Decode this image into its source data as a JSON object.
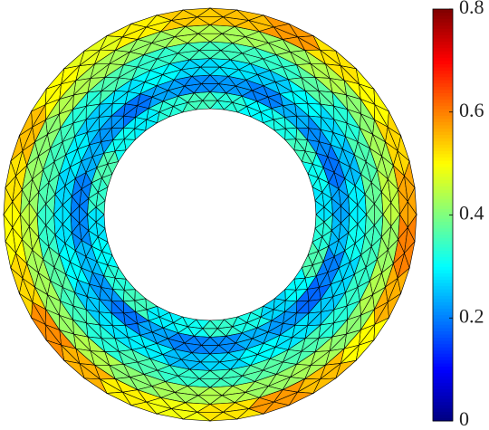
{
  "chart_data": {
    "type": "mesh",
    "colormap": "jet",
    "clim": [
      0,
      0.8
    ],
    "cticks": [
      0,
      0.2,
      0.4,
      0.6,
      0.8
    ],
    "rings": [
      [
        0.33,
        0.3,
        0.32,
        0.35,
        0.31,
        0.28,
        0.33,
        0.36,
        0.3,
        0.27,
        0.32,
        0.34,
        0.31,
        0.29,
        0.35,
        0.33,
        0.3,
        0.28,
        0.34,
        0.36,
        0.31,
        0.29,
        0.33,
        0.35
      ],
      [
        0.22,
        0.2,
        0.24,
        0.21,
        0.19,
        0.23,
        0.25,
        0.2,
        0.18,
        0.22,
        0.24,
        0.21,
        0.2,
        0.23,
        0.19,
        0.22,
        0.25,
        0.21,
        0.2,
        0.24,
        0.22,
        0.19,
        0.23,
        0.21
      ],
      [
        0.28,
        0.26,
        0.3,
        0.27,
        0.25,
        0.29,
        0.31,
        0.27,
        0.26,
        0.28,
        0.3,
        0.27,
        0.25,
        0.29,
        0.28,
        0.26,
        0.3,
        0.28,
        0.27,
        0.29,
        0.26,
        0.28,
        0.3,
        0.27
      ],
      [
        0.35,
        0.34,
        0.37,
        0.33,
        0.36,
        0.38,
        0.35,
        0.34,
        0.33,
        0.36,
        0.37,
        0.35,
        0.34,
        0.36,
        0.33,
        0.35,
        0.37,
        0.34,
        0.36,
        0.35,
        0.33,
        0.36,
        0.34,
        0.35
      ],
      [
        0.43,
        0.42,
        0.44,
        0.41,
        0.43,
        0.45,
        0.42,
        0.44,
        0.41,
        0.43,
        0.42,
        0.44,
        0.43,
        0.41,
        0.44,
        0.42,
        0.43,
        0.45,
        0.42,
        0.41,
        0.44,
        0.43,
        0.42,
        0.44
      ],
      [
        0.55,
        0.58,
        0.52,
        0.5,
        0.53,
        0.57,
        0.6,
        0.56,
        0.5,
        0.55,
        0.58,
        0.52,
        0.49,
        0.51,
        0.56,
        0.59,
        0.53,
        0.5,
        0.52,
        0.55,
        0.5,
        0.48,
        0.51,
        0.54
      ]
    ]
  }
}
